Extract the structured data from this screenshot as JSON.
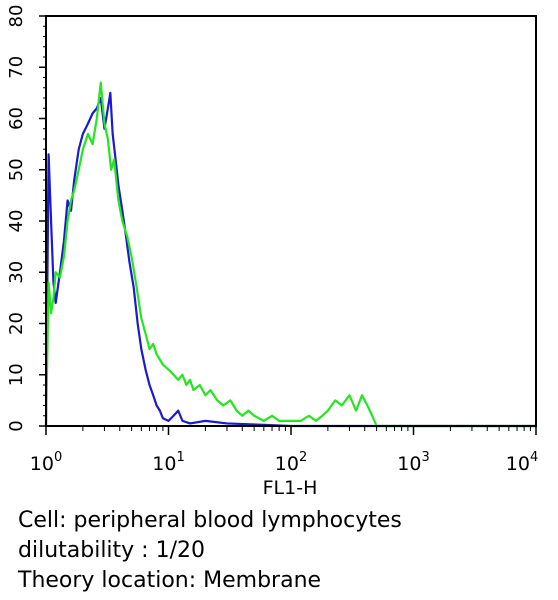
{
  "chart_data": {
    "type": "line",
    "xlabel": "FL1-H",
    "ylabel": "",
    "xscale": "log",
    "xlim": [
      1,
      10000
    ],
    "ylim": [
      0,
      80
    ],
    "yticks": [
      "0",
      "10",
      "20",
      "30",
      "40",
      "50",
      "60",
      "70",
      "80"
    ],
    "xticks": [
      {
        "base": "10",
        "exp": "0"
      },
      {
        "base": "10",
        "exp": "1"
      },
      {
        "base": "10",
        "exp": "2"
      },
      {
        "base": "10",
        "exp": "3"
      },
      {
        "base": "10",
        "exp": "4"
      }
    ],
    "grid": false,
    "legend": "none",
    "series": [
      {
        "color": "#1a1ad0",
        "x": [
          1.0,
          1.05,
          1.1,
          1.15,
          1.2,
          1.3,
          1.4,
          1.5,
          1.6,
          1.7,
          1.85,
          2.0,
          2.2,
          2.4,
          2.6,
          2.8,
          3.0,
          3.2,
          3.35,
          3.5,
          3.7,
          3.9,
          4.2,
          4.5,
          4.8,
          5.2,
          5.6,
          6.0,
          6.5,
          7.0,
          7.5,
          8.0,
          8.5,
          9.0,
          10.0,
          11.0,
          12.0,
          13.0,
          15.0,
          20.0,
          30.0,
          50.0,
          100.0,
          1000.0,
          10000.0
        ],
        "y": [
          0,
          53,
          40,
          28,
          24,
          30,
          36,
          44,
          42,
          48,
          54,
          57,
          59,
          61,
          62,
          64,
          58,
          62,
          65,
          57,
          52,
          47,
          42,
          37,
          32,
          27,
          20,
          15,
          11,
          8,
          6,
          4,
          3,
          1.5,
          1,
          2,
          3,
          1,
          0.5,
          1,
          0.5,
          0.3,
          0,
          0,
          0
        ]
      },
      {
        "color": "#22e61e",
        "x": [
          1.0,
          1.05,
          1.1,
          1.15,
          1.2,
          1.3,
          1.4,
          1.5,
          1.6,
          1.7,
          1.85,
          2.0,
          2.2,
          2.4,
          2.6,
          2.8,
          3.0,
          3.2,
          3.4,
          3.6,
          3.9,
          4.2,
          4.6,
          5.0,
          5.5,
          6.0,
          6.5,
          7.0,
          7.5,
          8.0,
          9.0,
          10.0,
          11.0,
          12.0,
          13.0,
          14.0,
          15.0,
          16.0,
          18.0,
          20.0,
          22.0,
          25.0,
          28.0,
          32.0,
          36.0,
          40.0,
          45.0,
          50.0,
          60.0,
          70.0,
          80.0,
          90.0,
          100.0,
          120.0,
          140.0,
          160.0,
          180.0,
          200.0,
          230.0,
          260.0,
          300.0,
          340.0,
          380.0,
          420.0,
          460.0,
          500.0,
          600.0,
          1000.0,
          3000.0,
          10000.0
        ],
        "y": [
          0,
          28,
          22,
          25,
          30,
          29,
          33,
          40,
          44,
          46,
          50,
          54,
          57,
          55,
          60,
          67,
          59,
          56,
          50,
          52,
          44,
          40,
          37,
          33,
          27,
          21,
          18,
          15,
          16,
          14,
          12,
          11,
          10,
          9,
          10,
          8,
          9,
          7,
          8,
          6,
          7,
          5,
          4,
          5,
          3,
          2,
          3,
          2,
          1,
          2,
          1,
          1,
          1,
          1,
          2,
          1,
          2,
          3,
          5,
          4,
          6,
          3,
          6,
          4,
          2,
          0,
          0,
          0,
          0,
          0
        ]
      }
    ]
  },
  "caption": {
    "line1": "Cell: peripheral blood lymphocytes",
    "line2": "dilutability : 1/20",
    "line3": "Theory location: Membrane"
  }
}
